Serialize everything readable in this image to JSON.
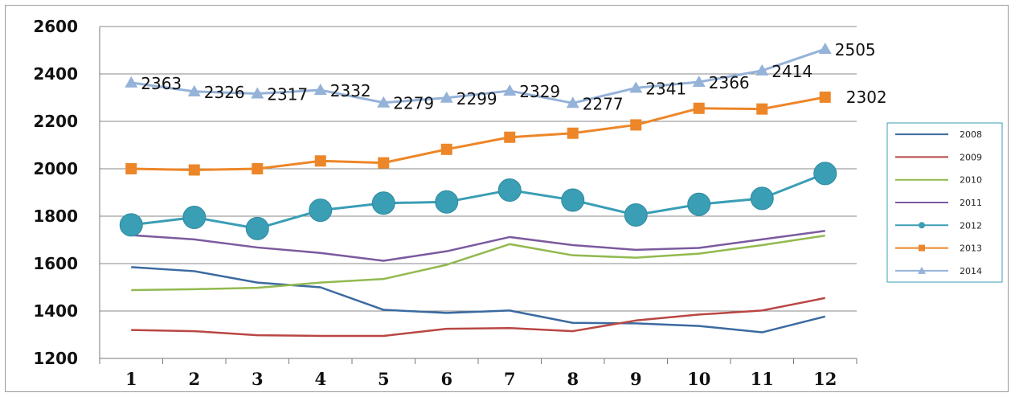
{
  "chart_data": {
    "type": "line",
    "title": "",
    "xlabel": "",
    "ylabel": "",
    "categories": [
      "1",
      "2",
      "3",
      "4",
      "5",
      "6",
      "7",
      "8",
      "9",
      "10",
      "11",
      "12"
    ],
    "ylim": [
      1200,
      2600
    ],
    "yticks": [
      "1200",
      "1400",
      "1600",
      "1800",
      "2000",
      "2200",
      "2400",
      "2600"
    ],
    "grid": "horizontal",
    "legend_position": "right",
    "series": [
      {
        "name": "2008",
        "color": "#3b6aa0",
        "marker": "none",
        "values": [
          1585,
          1568,
          1520,
          1500,
          1405,
          1392,
          1402,
          1350,
          1348,
          1337,
          1310,
          1377
        ]
      },
      {
        "name": "2009",
        "color": "#b94744",
        "marker": "none",
        "values": [
          1320,
          1315,
          1298,
          1295,
          1295,
          1325,
          1328,
          1315,
          1360,
          1385,
          1402,
          1455
        ]
      },
      {
        "name": "2010",
        "color": "#92b94f",
        "marker": "none",
        "values": [
          1488,
          1492,
          1498,
          1520,
          1535,
          1595,
          1682,
          1635,
          1625,
          1642,
          1678,
          1718
        ]
      },
      {
        "name": "2011",
        "color": "#7b5a9e",
        "marker": "none",
        "values": [
          1720,
          1702,
          1668,
          1645,
          1612,
          1652,
          1712,
          1678,
          1658,
          1666,
          1702,
          1738
        ]
      },
      {
        "name": "2012",
        "color": "#3a9eb5",
        "marker": "circle",
        "values": [
          1763,
          1795,
          1748,
          1825,
          1855,
          1860,
          1910,
          1868,
          1805,
          1850,
          1875,
          1980
        ]
      },
      {
        "name": "2013",
        "color": "#ed8628",
        "marker": "square",
        "values": [
          2000,
          1995,
          2000,
          2033,
          2025,
          2082,
          2133,
          2150,
          2185,
          2255,
          2252,
          2302
        ]
      },
      {
        "name": "2014",
        "color": "#95b2d8",
        "marker": "triangle",
        "values": [
          2363,
          2326,
          2317,
          2332,
          2279,
          2299,
          2329,
          2277,
          2341,
          2366,
          2414,
          2505
        ],
        "data_labels": [
          "2363",
          "2326",
          "2317",
          "2332",
          "2279",
          "2299",
          "2329",
          "2277",
          "2341",
          "2366",
          "2414",
          "2505"
        ]
      }
    ]
  }
}
